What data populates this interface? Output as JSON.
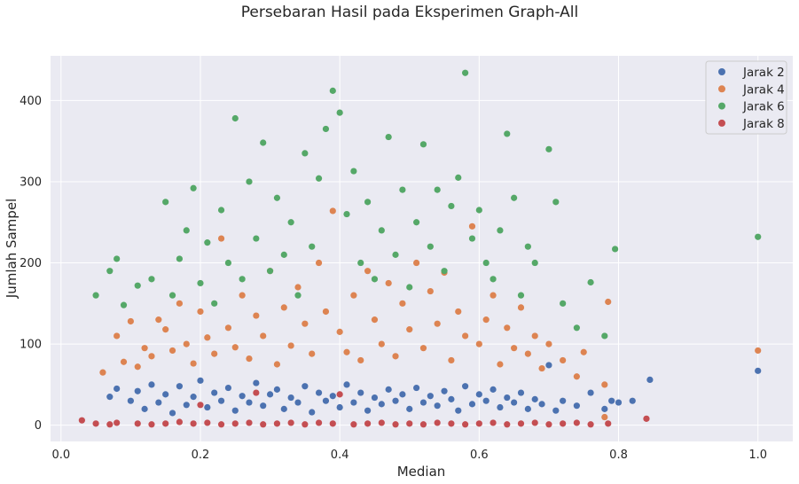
{
  "chart_data": {
    "type": "scatter",
    "title": "Persebaran Hasil pada Eksperimen Graph-All",
    "xlabel": "Median",
    "ylabel": "Jumlah Sampel",
    "xlim": [
      -0.015,
      1.05
    ],
    "ylim": [
      -20,
      455
    ],
    "xticks": [
      "0.0",
      "0.2",
      "0.4",
      "0.6",
      "0.8",
      "1.0"
    ],
    "yticks": [
      "0",
      "100",
      "200",
      "300",
      "400"
    ],
    "grid": true,
    "legend_position": "top-right",
    "series": [
      {
        "name": "Jarak 2",
        "color": "#4c72b0",
        "points": [
          [
            0.07,
            35
          ],
          [
            0.08,
            45
          ],
          [
            0.1,
            30
          ],
          [
            0.11,
            42
          ],
          [
            0.12,
            20
          ],
          [
            0.13,
            50
          ],
          [
            0.14,
            28
          ],
          [
            0.15,
            38
          ],
          [
            0.16,
            15
          ],
          [
            0.17,
            48
          ],
          [
            0.18,
            25
          ],
          [
            0.19,
            35
          ],
          [
            0.2,
            55
          ],
          [
            0.21,
            22
          ],
          [
            0.22,
            40
          ],
          [
            0.23,
            30
          ],
          [
            0.24,
            46
          ],
          [
            0.25,
            18
          ],
          [
            0.26,
            36
          ],
          [
            0.27,
            28
          ],
          [
            0.28,
            52
          ],
          [
            0.29,
            24
          ],
          [
            0.3,
            38
          ],
          [
            0.31,
            44
          ],
          [
            0.32,
            20
          ],
          [
            0.33,
            34
          ],
          [
            0.34,
            28
          ],
          [
            0.35,
            48
          ],
          [
            0.36,
            16
          ],
          [
            0.37,
            40
          ],
          [
            0.38,
            30
          ],
          [
            0.39,
            36
          ],
          [
            0.4,
            22
          ],
          [
            0.41,
            50
          ],
          [
            0.42,
            28
          ],
          [
            0.43,
            40
          ],
          [
            0.44,
            18
          ],
          [
            0.45,
            34
          ],
          [
            0.46,
            26
          ],
          [
            0.47,
            44
          ],
          [
            0.48,
            30
          ],
          [
            0.49,
            38
          ],
          [
            0.5,
            20
          ],
          [
            0.51,
            46
          ],
          [
            0.52,
            28
          ],
          [
            0.53,
            36
          ],
          [
            0.54,
            24
          ],
          [
            0.55,
            42
          ],
          [
            0.56,
            32
          ],
          [
            0.57,
            18
          ],
          [
            0.58,
            48
          ],
          [
            0.59,
            26
          ],
          [
            0.6,
            38
          ],
          [
            0.61,
            30
          ],
          [
            0.62,
            44
          ],
          [
            0.63,
            22
          ],
          [
            0.64,
            34
          ],
          [
            0.65,
            28
          ],
          [
            0.66,
            40
          ],
          [
            0.67,
            20
          ],
          [
            0.68,
            32
          ],
          [
            0.69,
            26
          ],
          [
            0.7,
            74
          ],
          [
            0.71,
            18
          ],
          [
            0.72,
            30
          ],
          [
            0.74,
            24
          ],
          [
            0.76,
            40
          ],
          [
            0.78,
            20
          ],
          [
            0.79,
            30
          ],
          [
            0.8,
            28
          ],
          [
            0.82,
            30
          ],
          [
            0.845,
            56
          ],
          [
            1.0,
            67
          ]
        ]
      },
      {
        "name": "Jarak 4",
        "color": "#dd8452",
        "points": [
          [
            0.06,
            65
          ],
          [
            0.08,
            110
          ],
          [
            0.09,
            78
          ],
          [
            0.1,
            128
          ],
          [
            0.11,
            72
          ],
          [
            0.12,
            95
          ],
          [
            0.13,
            85
          ],
          [
            0.14,
            130
          ],
          [
            0.15,
            118
          ],
          [
            0.16,
            92
          ],
          [
            0.17,
            150
          ],
          [
            0.18,
            100
          ],
          [
            0.19,
            76
          ],
          [
            0.2,
            140
          ],
          [
            0.21,
            108
          ],
          [
            0.22,
            88
          ],
          [
            0.23,
            230
          ],
          [
            0.24,
            120
          ],
          [
            0.25,
            96
          ],
          [
            0.26,
            160
          ],
          [
            0.27,
            82
          ],
          [
            0.28,
            135
          ],
          [
            0.29,
            110
          ],
          [
            0.3,
            190
          ],
          [
            0.31,
            75
          ],
          [
            0.32,
            145
          ],
          [
            0.33,
            98
          ],
          [
            0.34,
            170
          ],
          [
            0.35,
            125
          ],
          [
            0.36,
            88
          ],
          [
            0.37,
            200
          ],
          [
            0.38,
            140
          ],
          [
            0.39,
            264
          ],
          [
            0.4,
            115
          ],
          [
            0.41,
            90
          ],
          [
            0.42,
            160
          ],
          [
            0.43,
            80
          ],
          [
            0.44,
            190
          ],
          [
            0.45,
            130
          ],
          [
            0.46,
            100
          ],
          [
            0.47,
            175
          ],
          [
            0.48,
            85
          ],
          [
            0.49,
            150
          ],
          [
            0.5,
            118
          ],
          [
            0.51,
            200
          ],
          [
            0.52,
            95
          ],
          [
            0.53,
            165
          ],
          [
            0.54,
            125
          ],
          [
            0.55,
            188
          ],
          [
            0.56,
            80
          ],
          [
            0.57,
            140
          ],
          [
            0.58,
            110
          ],
          [
            0.59,
            245
          ],
          [
            0.6,
            100
          ],
          [
            0.61,
            130
          ],
          [
            0.62,
            160
          ],
          [
            0.63,
            75
          ],
          [
            0.64,
            120
          ],
          [
            0.65,
            95
          ],
          [
            0.66,
            145
          ],
          [
            0.67,
            88
          ],
          [
            0.68,
            110
          ],
          [
            0.69,
            70
          ],
          [
            0.7,
            100
          ],
          [
            0.72,
            80
          ],
          [
            0.74,
            60
          ],
          [
            0.75,
            90
          ],
          [
            0.78,
            50
          ],
          [
            0.785,
            152
          ],
          [
            0.78,
            10
          ],
          [
            1.0,
            92
          ]
        ]
      },
      {
        "name": "Jarak 6",
        "color": "#55a868",
        "points": [
          [
            0.05,
            160
          ],
          [
            0.07,
            190
          ],
          [
            0.08,
            205
          ],
          [
            0.09,
            148
          ],
          [
            0.11,
            172
          ],
          [
            0.13,
            180
          ],
          [
            0.15,
            275
          ],
          [
            0.16,
            160
          ],
          [
            0.17,
            205
          ],
          [
            0.18,
            240
          ],
          [
            0.19,
            292
          ],
          [
            0.2,
            175
          ],
          [
            0.21,
            225
          ],
          [
            0.22,
            150
          ],
          [
            0.23,
            265
          ],
          [
            0.24,
            200
          ],
          [
            0.25,
            378
          ],
          [
            0.26,
            180
          ],
          [
            0.27,
            300
          ],
          [
            0.28,
            230
          ],
          [
            0.29,
            348
          ],
          [
            0.3,
            190
          ],
          [
            0.31,
            280
          ],
          [
            0.32,
            210
          ],
          [
            0.33,
            250
          ],
          [
            0.34,
            160
          ],
          [
            0.35,
            335
          ],
          [
            0.36,
            220
          ],
          [
            0.37,
            304
          ],
          [
            0.38,
            365
          ],
          [
            0.39,
            412
          ],
          [
            0.4,
            385
          ],
          [
            0.41,
            260
          ],
          [
            0.42,
            313
          ],
          [
            0.43,
            200
          ],
          [
            0.44,
            275
          ],
          [
            0.45,
            180
          ],
          [
            0.46,
            240
          ],
          [
            0.47,
            355
          ],
          [
            0.48,
            210
          ],
          [
            0.49,
            290
          ],
          [
            0.5,
            170
          ],
          [
            0.51,
            250
          ],
          [
            0.52,
            346
          ],
          [
            0.53,
            220
          ],
          [
            0.54,
            290
          ],
          [
            0.55,
            190
          ],
          [
            0.56,
            270
          ],
          [
            0.57,
            305
          ],
          [
            0.58,
            434
          ],
          [
            0.59,
            230
          ],
          [
            0.6,
            265
          ],
          [
            0.61,
            200
          ],
          [
            0.62,
            180
          ],
          [
            0.63,
            240
          ],
          [
            0.64,
            359
          ],
          [
            0.65,
            280
          ],
          [
            0.66,
            160
          ],
          [
            0.67,
            220
          ],
          [
            0.68,
            200
          ],
          [
            0.7,
            340
          ],
          [
            0.71,
            275
          ],
          [
            0.72,
            150
          ],
          [
            0.74,
            120
          ],
          [
            0.76,
            176
          ],
          [
            0.78,
            110
          ],
          [
            0.795,
            217
          ],
          [
            1.0,
            232
          ]
        ]
      },
      {
        "name": "Jarak 8",
        "color": "#c44e52",
        "points": [
          [
            0.03,
            6
          ],
          [
            0.05,
            2
          ],
          [
            0.07,
            1
          ],
          [
            0.08,
            3
          ],
          [
            0.11,
            2
          ],
          [
            0.13,
            1
          ],
          [
            0.15,
            2
          ],
          [
            0.17,
            4
          ],
          [
            0.19,
            2
          ],
          [
            0.2,
            25
          ],
          [
            0.21,
            3
          ],
          [
            0.23,
            1
          ],
          [
            0.25,
            2
          ],
          [
            0.27,
            3
          ],
          [
            0.28,
            40
          ],
          [
            0.29,
            1
          ],
          [
            0.31,
            2
          ],
          [
            0.33,
            3
          ],
          [
            0.35,
            1
          ],
          [
            0.37,
            3
          ],
          [
            0.39,
            2
          ],
          [
            0.4,
            38
          ],
          [
            0.42,
            1
          ],
          [
            0.44,
            2
          ],
          [
            0.46,
            3
          ],
          [
            0.48,
            1
          ],
          [
            0.5,
            2
          ],
          [
            0.52,
            1
          ],
          [
            0.54,
            3
          ],
          [
            0.56,
            2
          ],
          [
            0.58,
            1
          ],
          [
            0.6,
            2
          ],
          [
            0.62,
            3
          ],
          [
            0.64,
            1
          ],
          [
            0.66,
            2
          ],
          [
            0.68,
            3
          ],
          [
            0.7,
            1
          ],
          [
            0.72,
            2
          ],
          [
            0.74,
            3
          ],
          [
            0.76,
            1
          ],
          [
            0.785,
            2
          ],
          [
            0.84,
            8
          ]
        ]
      }
    ]
  }
}
